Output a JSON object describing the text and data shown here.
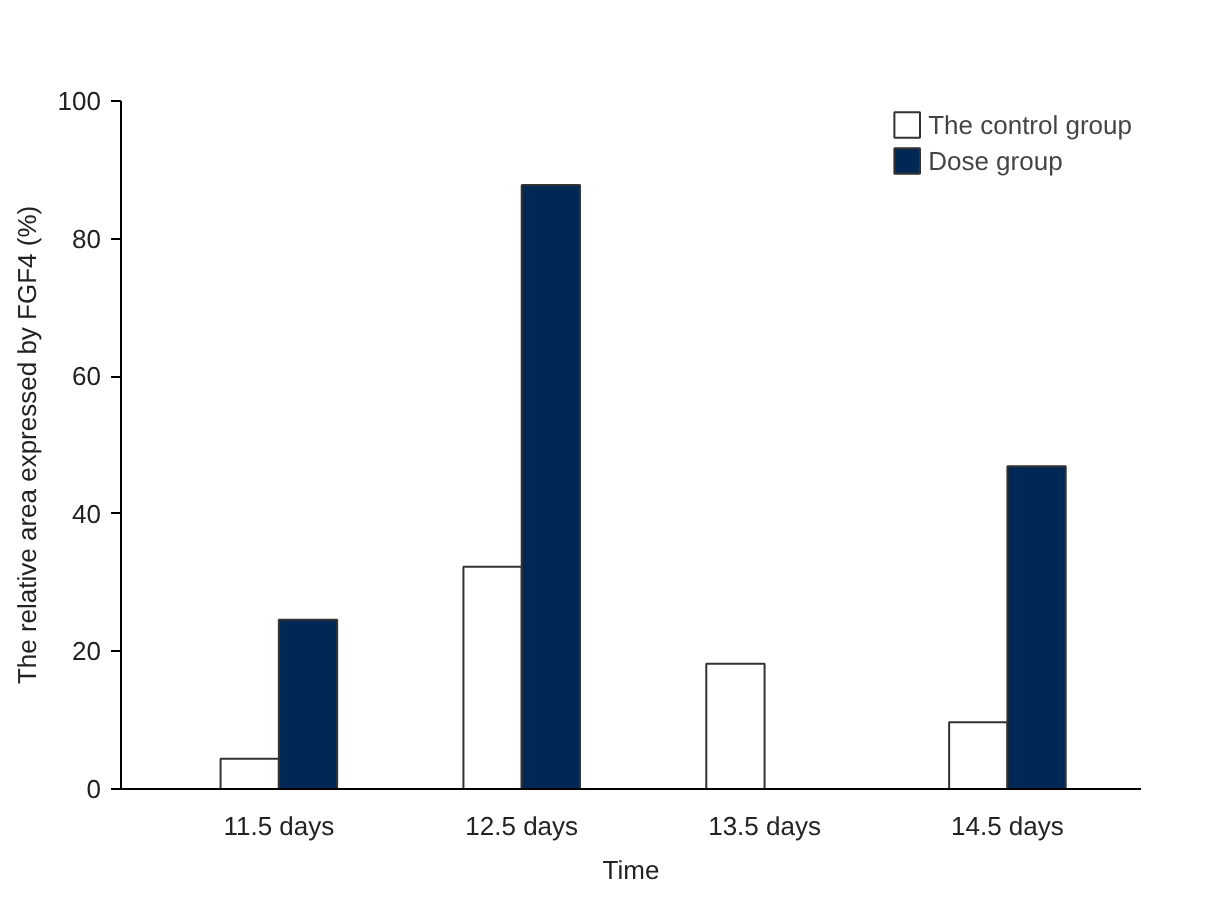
{
  "chart_data": {
    "type": "bar",
    "xlabel": "Time",
    "ylabel": "The relative area expressed by FGF4 (%)",
    "categories": [
      "11.5 days",
      "12.5 days",
      "13.5 days",
      "14.5 days"
    ],
    "series": [
      {
        "name": "The control group",
        "color": "#ffffff",
        "values": [
          4.4,
          32.3,
          18.2,
          9.7
        ]
      },
      {
        "name": "Dose group",
        "color": "#002855",
        "values": [
          24.6,
          87.8,
          null,
          46.9
        ]
      }
    ],
    "ylim": [
      0,
      100
    ],
    "yticks": [
      0,
      20,
      40,
      60,
      80,
      100
    ],
    "grid": false,
    "legend": "top right"
  }
}
